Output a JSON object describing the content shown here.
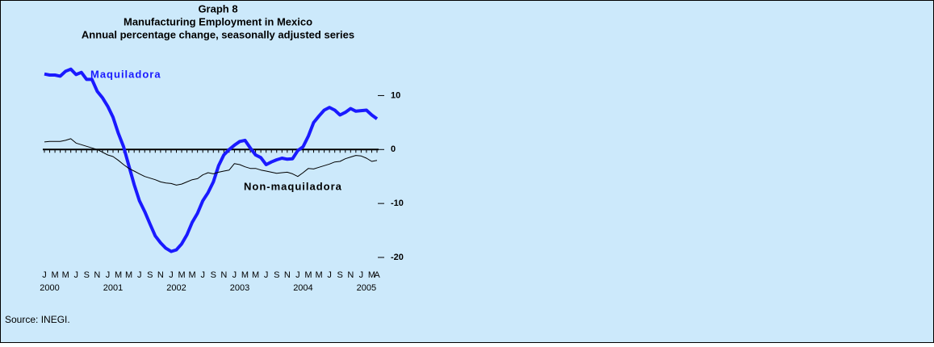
{
  "chart_data": {
    "type": "line",
    "title": "Graph 8",
    "subtitle": "Manufacturing Employment in Mexico",
    "subtitle2": "Annual percentage change, seasonally adjusted series",
    "source": "Source: INEGI.",
    "categories": [
      "J",
      null,
      "M",
      null,
      "M",
      null,
      "J",
      null,
      "S",
      null,
      "N",
      null,
      "J",
      null,
      "M",
      null,
      "M",
      null,
      "J",
      null,
      "S",
      null,
      "N",
      null,
      "J",
      null,
      "M",
      null,
      "M",
      null,
      "J",
      null,
      "S",
      null,
      "N",
      null,
      "J",
      null,
      "M",
      null,
      "M",
      null,
      "J",
      null,
      "S",
      null,
      "N",
      null,
      "J",
      null,
      "M",
      null,
      "M",
      null,
      "J",
      null,
      "S",
      null,
      "N",
      null,
      "J",
      null,
      "M",
      "A"
    ],
    "years": [
      "2000",
      "2001",
      "2002",
      "2003",
      "2004",
      "2005"
    ],
    "series": [
      {
        "name": "Maquiladora",
        "color": "#1a1aff",
        "values": [
          14,
          13.8,
          13.8,
          13.6,
          14.5,
          14.9,
          13.9,
          14.3,
          13,
          13,
          10.8,
          9.6,
          8,
          6,
          3,
          0.5,
          -3,
          -6.5,
          -9.5,
          -11.5,
          -13.8,
          -16,
          -17.3,
          -18.3,
          -18.9,
          -18.6,
          -17.5,
          -15.8,
          -13.5,
          -11.8,
          -9.5,
          -8,
          -6,
          -3,
          -1,
          0,
          0.8,
          1.5,
          1.7,
          0.3,
          -1,
          -1.5,
          -2.8,
          -2.3,
          -1.9,
          -1.6,
          -1.8,
          -1.7,
          -0.2,
          0.5,
          2.5,
          5,
          6.2,
          7.3,
          7.8,
          7.3,
          6.4,
          6.9,
          7.6,
          7.1,
          7.2,
          7.3,
          6.4,
          5.7
        ]
      },
      {
        "name": "Non-maquiladora",
        "color": "#000000",
        "values": [
          1.4,
          1.5,
          1.5,
          1.5,
          1.7,
          2,
          1.2,
          0.9,
          0.6,
          0.3,
          0,
          -0.5,
          -1,
          -1.3,
          -2,
          -2.8,
          -3.5,
          -4,
          -4.5,
          -5,
          -5.3,
          -5.6,
          -6,
          -6.2,
          -6.3,
          -6.6,
          -6.4,
          -6,
          -5.6,
          -5.4,
          -4.7,
          -4.3,
          -4.5,
          -4.2,
          -4,
          -3.8,
          -2.6,
          -2.8,
          -3.2,
          -3.5,
          -3.5,
          -3.8,
          -4,
          -4.2,
          -4.4,
          -4.3,
          -4.2,
          -4.5,
          -5,
          -4.3,
          -3.5,
          -3.6,
          -3.3,
          -3,
          -2.7,
          -2.3,
          -2.2,
          -1.7,
          -1.4,
          -1.1,
          -1.2,
          -1.6,
          -2.2,
          -2
        ]
      }
    ],
    "ylim": [
      -20,
      15
    ],
    "yticks": [
      -20,
      -10,
      0,
      10
    ]
  }
}
